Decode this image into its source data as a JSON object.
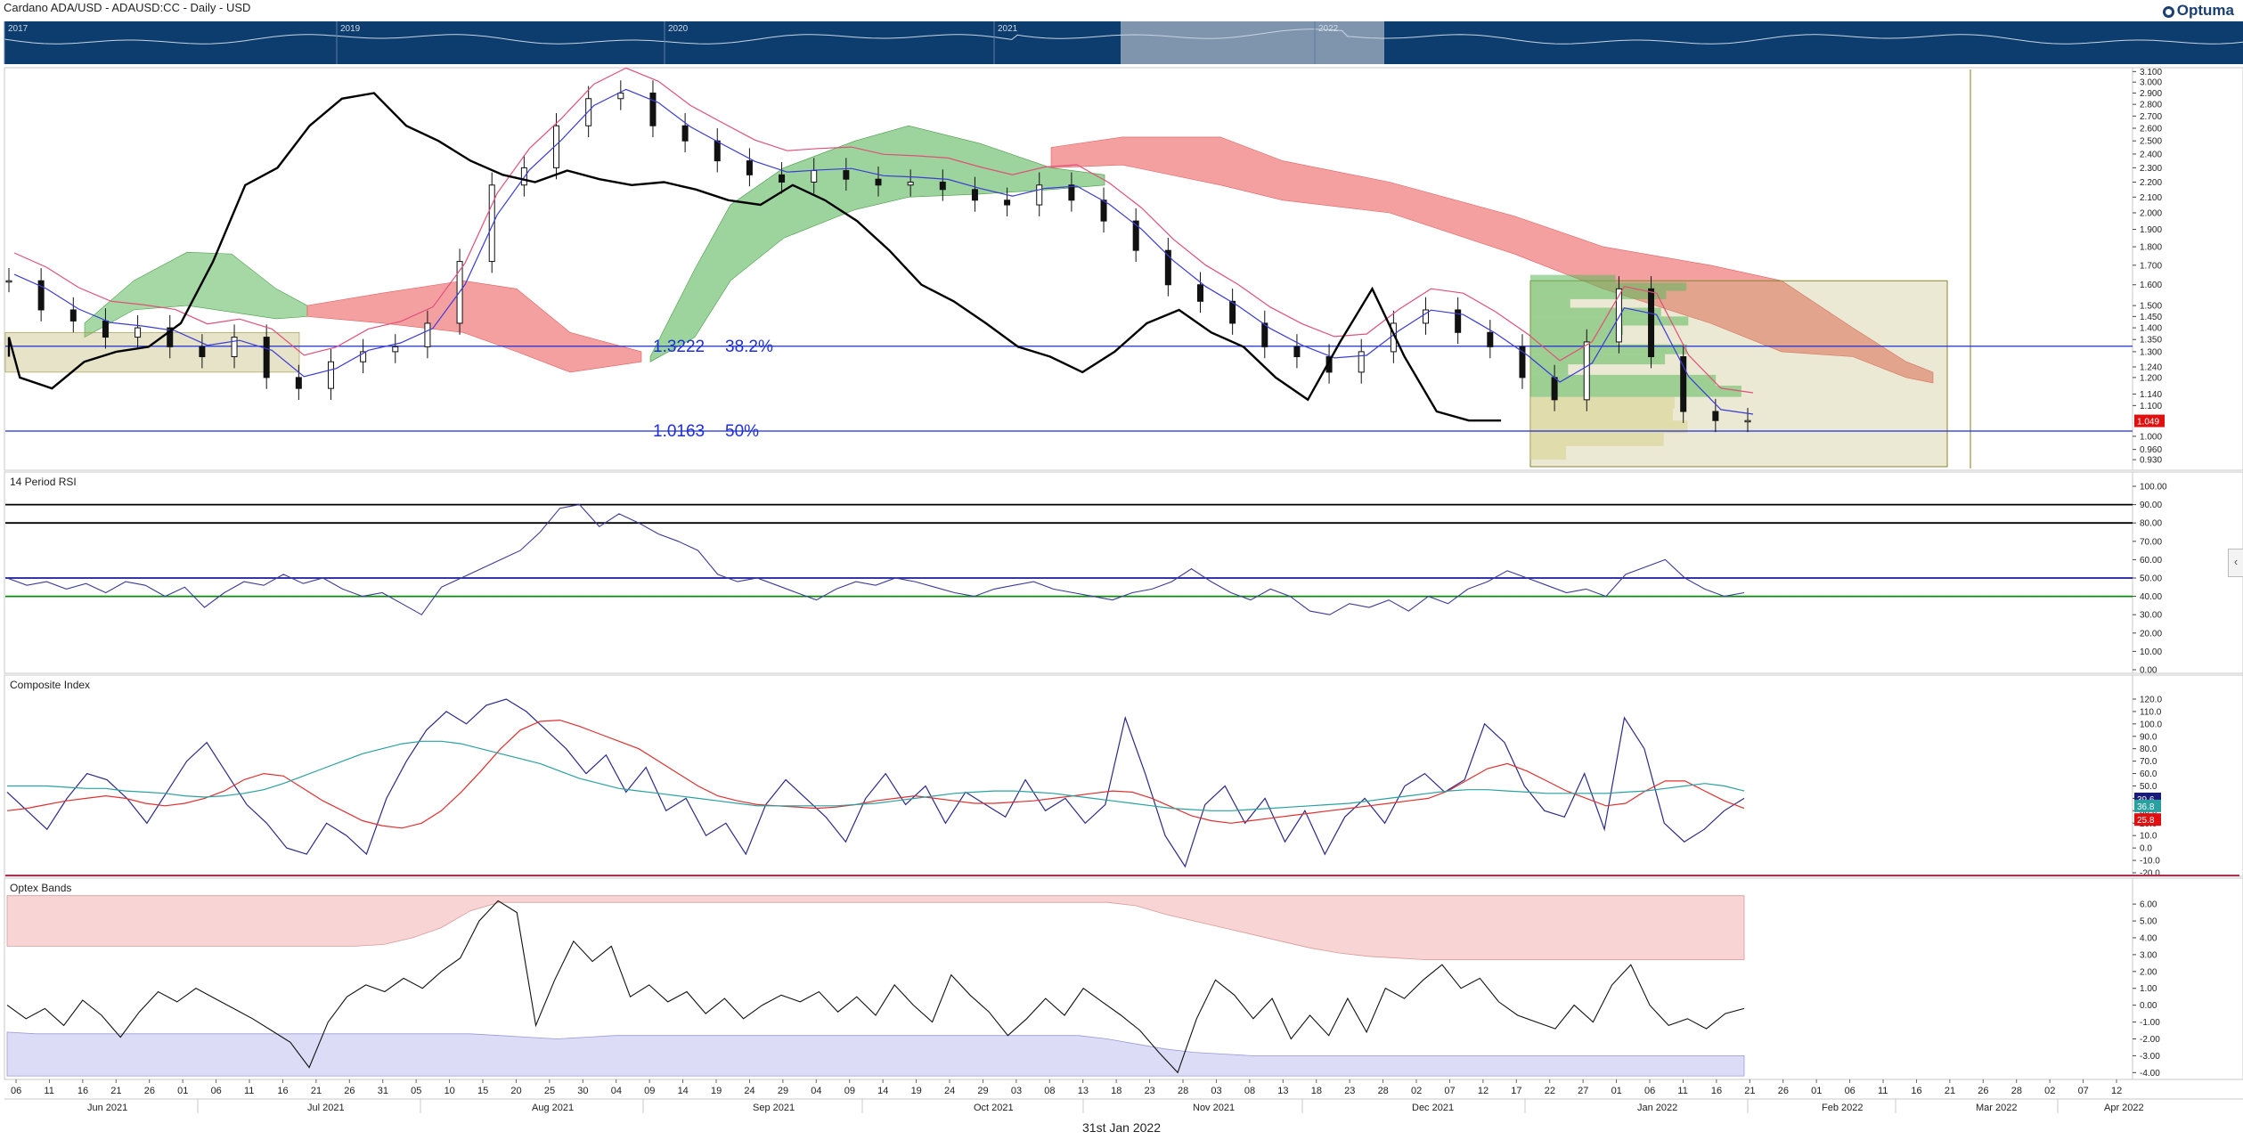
{
  "header": {
    "title": "Cardano ADA/USD - ADAUSD:CC - Daily - USD",
    "brand": "Optuma"
  },
  "footer": {
    "date": "31st Jan 2022"
  },
  "navigator": {
    "years": [
      "2017",
      "2019",
      "2020",
      "2021",
      "2022"
    ]
  },
  "sidebar_toggle": "‹",
  "chart_data": [
    {
      "type": "candlestick",
      "scale": "log",
      "yticks": [
        "3.100",
        "3.000",
        "2.900",
        "2.800",
        "2.700",
        "2.600",
        "2.500",
        "2.400",
        "2.300",
        "2.200",
        "2.100",
        "2.000",
        "1.900",
        "1.800",
        "1.700",
        "1.600",
        "1.500",
        "1.450",
        "1.400",
        "1.350",
        "1.300",
        "1.240",
        "1.200",
        "1.140",
        "1.100",
        "1.000",
        "0.960",
        "0.930"
      ],
      "ylim": [
        0.905,
        3.12
      ],
      "indicators": [
        "Ichimoku Kumo Cloud",
        "Tenkan-sen",
        "Kijun-sen",
        "Chikou Span",
        "Volume Profile"
      ],
      "last_price_label": "1.049",
      "fib_levels": [
        {
          "price": "1.3222",
          "pct": "38.2%"
        },
        {
          "price": "1.0163",
          "pct": "50%"
        }
      ],
      "candles_weekly_closes": [
        1.62,
        1.48,
        1.43,
        1.36,
        1.4,
        1.32,
        1.28,
        1.36,
        1.2,
        1.16,
        1.26,
        1.3,
        1.32,
        1.42,
        1.72,
        2.18,
        2.3,
        2.62,
        2.85,
        2.9,
        2.62,
        2.5,
        2.35,
        2.25,
        2.2,
        2.28,
        2.22,
        2.18,
        2.2,
        2.15,
        2.08,
        2.05,
        2.18,
        2.08,
        1.95,
        1.78,
        1.6,
        1.52,
        1.42,
        1.32,
        1.28,
        1.22,
        1.3,
        1.42,
        1.48,
        1.38,
        1.32,
        1.2,
        1.12,
        1.34,
        1.58,
        1.28,
        1.08,
        1.05,
        1.05
      ]
    },
    {
      "type": "line",
      "title": "14 Period RSI",
      "yticks": [
        "100.00",
        "90.00",
        "80.00",
        "70.00",
        "60.00",
        "50.00",
        "40.00",
        "30.00",
        "20.00",
        "10.00",
        "0.00"
      ],
      "ylim": [
        0,
        100
      ],
      "levels": [
        90,
        80,
        50,
        40
      ],
      "values": [
        50,
        46,
        48,
        44,
        47,
        42,
        48,
        46,
        40,
        45,
        34,
        42,
        48,
        46,
        52,
        47,
        50,
        44,
        40,
        42,
        36,
        30,
        45,
        50,
        55,
        60,
        65,
        75,
        88,
        90,
        78,
        85,
        80,
        74,
        70,
        65,
        52,
        48,
        50,
        46,
        42,
        38,
        44,
        48,
        46,
        50,
        48,
        45,
        42,
        40,
        44,
        46,
        48,
        44,
        42,
        40,
        38,
        42,
        44,
        48,
        55,
        48,
        42,
        38,
        44,
        40,
        32,
        30,
        36,
        34,
        38,
        32,
        40,
        36,
        44,
        48,
        54,
        50,
        46,
        42,
        44,
        40,
        52,
        56,
        60,
        50,
        44,
        40,
        42
      ]
    },
    {
      "type": "line",
      "title": "Composite Index",
      "yticks": [
        "120.0",
        "110.0",
        "100.0",
        "90.0",
        "80.0",
        "70.0",
        "60.0",
        "50.0",
        "40.0",
        "30.0",
        "20.0",
        "10.0",
        "0.0",
        "-10.0",
        "-20.0"
      ],
      "ylim": [
        -20,
        125
      ],
      "series": [
        {
          "values": [
            45,
            30,
            15,
            40,
            60,
            55,
            40,
            20,
            45,
            70,
            85,
            60,
            35,
            20,
            0,
            -5,
            20,
            10,
            -5,
            40,
            70,
            95,
            110,
            100,
            115,
            120,
            110,
            95,
            80,
            60,
            75,
            45,
            65,
            30,
            40,
            10,
            20,
            -5,
            35,
            55,
            40,
            25,
            5,
            40,
            60,
            35,
            50,
            20,
            45,
            35,
            25,
            55,
            30,
            40,
            20,
            35,
            105,
            60,
            10,
            -15,
            35,
            50,
            20,
            40,
            5,
            30,
            -5,
            25,
            40,
            20,
            50,
            60,
            45,
            55,
            100,
            85,
            50,
            30,
            25,
            60,
            15,
            105,
            80,
            20,
            5,
            15,
            30,
            40
          ]
        },
        {
          "values": [
            30,
            32,
            35,
            38,
            40,
            42,
            40,
            36,
            34,
            36,
            40,
            46,
            55,
            60,
            58,
            48,
            38,
            30,
            22,
            18,
            16,
            20,
            30,
            45,
            62,
            80,
            95,
            102,
            103,
            98,
            92,
            86,
            80,
            70,
            60,
            50,
            42,
            38,
            35,
            34,
            33,
            32,
            33,
            35,
            38,
            40,
            42,
            40,
            38,
            36,
            36,
            37,
            38,
            40,
            42,
            44,
            46,
            45,
            40,
            33,
            26,
            22,
            20,
            22,
            24,
            26,
            28,
            30,
            32,
            34,
            36,
            38,
            40,
            46,
            55,
            64,
            68,
            62,
            54,
            46,
            40,
            34,
            36,
            46,
            54,
            54,
            46,
            38,
            32
          ]
        },
        {
          "values": [
            50,
            50,
            50,
            49,
            48,
            48,
            46,
            45,
            44,
            42,
            41,
            42,
            44,
            47,
            52,
            58,
            64,
            70,
            76,
            80,
            84,
            86,
            86,
            84,
            80,
            76,
            72,
            68,
            62,
            56,
            52,
            48,
            46,
            44,
            42,
            40,
            38,
            36,
            34,
            34,
            34,
            34,
            34,
            35,
            36,
            38,
            40,
            42,
            44,
            45,
            46,
            46,
            45,
            44,
            42,
            40,
            38,
            36,
            34,
            32,
            31,
            30,
            30,
            31,
            32,
            33,
            34,
            35,
            36,
            38,
            40,
            42,
            44,
            46,
            47,
            47,
            46,
            45,
            44,
            44,
            44,
            44,
            45,
            46,
            48,
            50,
            52,
            50,
            46
          ]
        }
      ],
      "last_labels": [
        "39.6",
        "36.8",
        "25.8"
      ]
    },
    {
      "type": "area",
      "title": "Optex Bands",
      "yticks": [
        "6.00",
        "5.00",
        "4.00",
        "3.00",
        "2.00",
        "1.00",
        "0.00",
        "-1.00",
        "-2.00",
        "-3.00",
        "-4.00"
      ],
      "ylim": [
        -4.3,
        6.8
      ],
      "upper_band": [
        3.5,
        3.5,
        3.5,
        3.5,
        3.5,
        3.5,
        3.5,
        3.5,
        3.5,
        3.5,
        3.5,
        3.5,
        3.5,
        3.6,
        4.0,
        4.6,
        5.6,
        6.1,
        6.1,
        6.1,
        6.1,
        6.1,
        6.1,
        6.1,
        6.1,
        6.1,
        6.1,
        6.1,
        6.1,
        6.1,
        6.1,
        6.1,
        6.1,
        6.1,
        6.1,
        6.1,
        6.1,
        6.1,
        6.1,
        5.9,
        5.4,
        5.0,
        4.6,
        4.2,
        3.8,
        3.4,
        3.1,
        2.9,
        2.8,
        2.7,
        2.7,
        2.7,
        2.7,
        2.7,
        2.7,
        2.7,
        2.7,
        2.7,
        2.7,
        2.7,
        2.7
      ],
      "lower_band": [
        -1.6,
        -1.7,
        -1.7,
        -1.7,
        -1.7,
        -1.7,
        -1.7,
        -1.7,
        -1.7,
        -1.7,
        -1.7,
        -1.7,
        -1.7,
        -1.7,
        -1.7,
        -1.7,
        -1.7,
        -1.8,
        -1.9,
        -2.0,
        -1.9,
        -1.8,
        -1.8,
        -1.8,
        -1.8,
        -1.8,
        -1.8,
        -1.8,
        -1.8,
        -1.8,
        -1.8,
        -1.8,
        -1.8,
        -1.8,
        -1.8,
        -1.8,
        -1.8,
        -1.8,
        -2.0,
        -2.3,
        -2.6,
        -2.8,
        -2.9,
        -3.0,
        -3.0,
        -3.0,
        -3.0,
        -3.0,
        -3.0,
        -3.0,
        -3.0,
        -3.0,
        -3.0,
        -3.0,
        -3.0,
        -3.0,
        -3.0,
        -3.0,
        -3.0,
        -3.0,
        -3.0
      ],
      "values": [
        0.0,
        -0.8,
        -0.2,
        -1.2,
        0.3,
        -0.6,
        -1.9,
        -0.4,
        0.8,
        0.2,
        1.0,
        0.4,
        -0.2,
        -0.8,
        -1.5,
        -2.2,
        -3.7,
        -1.0,
        0.5,
        1.2,
        0.8,
        1.6,
        1.0,
        2.0,
        2.8,
        5.0,
        6.2,
        5.5,
        -1.2,
        1.5,
        3.8,
        2.6,
        3.5,
        0.5,
        1.2,
        0.2,
        0.8,
        -0.5,
        0.4,
        -0.8,
        0.0,
        0.6,
        0.2,
        0.8,
        -0.4,
        0.5,
        -0.6,
        1.2,
        0.0,
        -1.0,
        1.8,
        0.6,
        -0.4,
        -1.8,
        -0.8,
        0.4,
        -0.6,
        1.0,
        0.2,
        -0.6,
        -1.5,
        -2.8,
        -4.0,
        -0.8,
        1.5,
        0.6,
        -0.8,
        0.4,
        -2.0,
        -0.6,
        -1.8,
        0.4,
        -1.6,
        1.0,
        0.4,
        1.5,
        2.4,
        1.0,
        1.6,
        0.2,
        -0.6,
        -1.0,
        -1.4,
        0.0,
        -1.0,
        1.2,
        2.4,
        0.0,
        -1.2,
        -0.8,
        -1.4,
        -0.5,
        -0.2
      ]
    }
  ],
  "xaxis": {
    "days": [
      "06",
      "11",
      "16",
      "21",
      "26",
      "01",
      "06",
      "11",
      "16",
      "21",
      "26",
      "31",
      "05",
      "10",
      "15",
      "20",
      "25",
      "30",
      "04",
      "09",
      "14",
      "19",
      "24",
      "29",
      "04",
      "09",
      "14",
      "19",
      "24",
      "29",
      "03",
      "08",
      "13",
      "18",
      "23",
      "28",
      "03",
      "08",
      "13",
      "18",
      "23",
      "28",
      "02",
      "07",
      "12",
      "17",
      "22",
      "27",
      "01",
      "06",
      "11",
      "16",
      "21",
      "26",
      "01",
      "06",
      "11",
      "16",
      "21",
      "26",
      "28",
      "02",
      "07",
      "12"
    ],
    "months": [
      "Jun 2021",
      "Jul 2021",
      "Aug 2021",
      "Sep 2021",
      "Oct 2021",
      "Nov 2021",
      "Dec 2021",
      "Jan 2022",
      "Feb 2022",
      "Mar 2022",
      "Apr 2022"
    ]
  }
}
